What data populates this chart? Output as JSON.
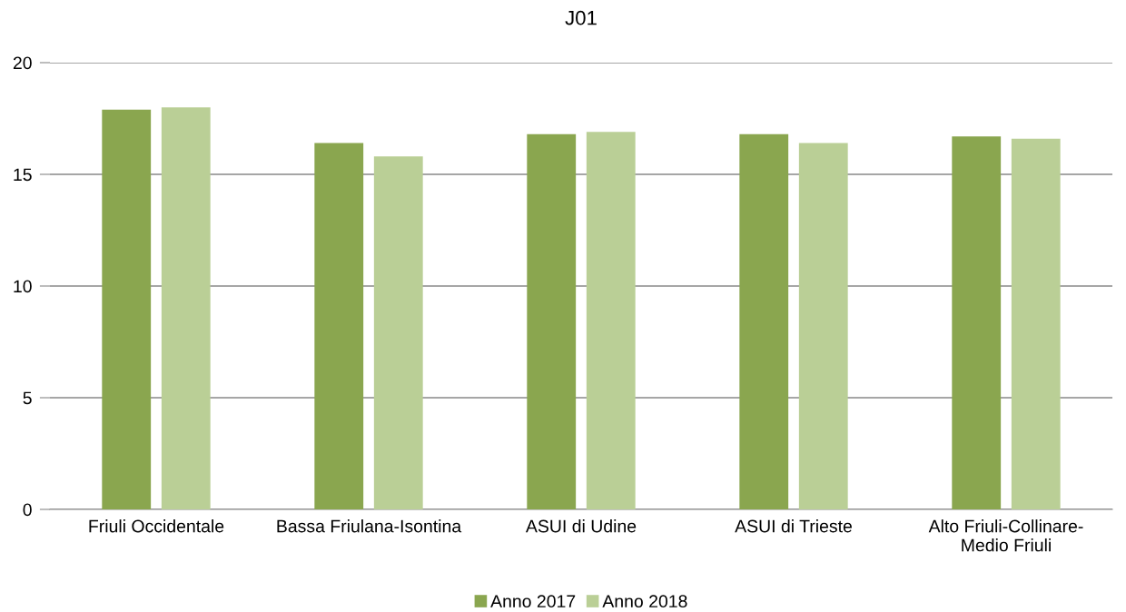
{
  "chart_data": {
    "type": "bar",
    "title": "J01",
    "categories": [
      "Friuli Occidentale",
      "Bassa Friulana-Isontina",
      "ASUI di Udine",
      "ASUI di Trieste",
      "Alto Friuli-Collinare-\nMedio Friuli"
    ],
    "series": [
      {
        "name": "Anno 2017",
        "color": "#8aa64f",
        "values": [
          17.9,
          16.4,
          16.8,
          16.8,
          16.7
        ]
      },
      {
        "name": "Anno 2018",
        "color": "#bacf96",
        "values": [
          18.0,
          15.8,
          16.9,
          16.4,
          16.6
        ]
      }
    ],
    "ylim": [
      0,
      20
    ],
    "yticks": [
      0,
      5,
      10,
      15,
      20
    ],
    "grid": "y",
    "legend": "bottom"
  }
}
